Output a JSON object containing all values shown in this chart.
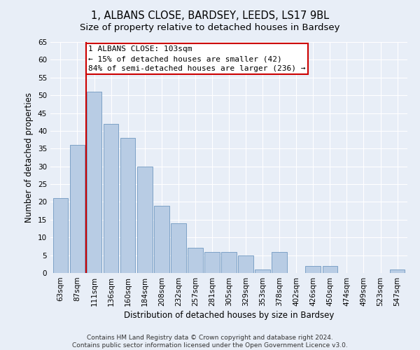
{
  "title": "1, ALBANS CLOSE, BARDSEY, LEEDS, LS17 9BL",
  "subtitle": "Size of property relative to detached houses in Bardsey",
  "xlabel": "Distribution of detached houses by size in Bardsey",
  "ylabel": "Number of detached properties",
  "categories": [
    "63sqm",
    "87sqm",
    "111sqm",
    "136sqm",
    "160sqm",
    "184sqm",
    "208sqm",
    "232sqm",
    "257sqm",
    "281sqm",
    "305sqm",
    "329sqm",
    "353sqm",
    "378sqm",
    "402sqm",
    "426sqm",
    "450sqm",
    "474sqm",
    "499sqm",
    "523sqm",
    "547sqm"
  ],
  "values": [
    21,
    36,
    51,
    42,
    38,
    30,
    19,
    14,
    7,
    6,
    6,
    5,
    1,
    6,
    0,
    2,
    2,
    0,
    0,
    0,
    1
  ],
  "bar_color": "#b8cce4",
  "bar_edge_color": "#7099c0",
  "marker_line_color": "#cc0000",
  "annotation_line1": "1 ALBANS CLOSE: 103sqm",
  "annotation_line2": "← 15% of detached houses are smaller (42)",
  "annotation_line3": "84% of semi-detached houses are larger (236) →",
  "annotation_box_color": "#cc0000",
  "ylim": [
    0,
    65
  ],
  "yticks": [
    0,
    5,
    10,
    15,
    20,
    25,
    30,
    35,
    40,
    45,
    50,
    55,
    60,
    65
  ],
  "bg_color": "#e8eef7",
  "plot_bg_color": "#e8eef7",
  "footer_text": "Contains HM Land Registry data © Crown copyright and database right 2024.\nContains public sector information licensed under the Open Government Licence v3.0.",
  "title_fontsize": 10.5,
  "subtitle_fontsize": 9.5,
  "axis_label_fontsize": 8.5,
  "tick_fontsize": 7.5,
  "annotation_fontsize": 8,
  "footer_fontsize": 6.5,
  "marker_line_index": 2
}
